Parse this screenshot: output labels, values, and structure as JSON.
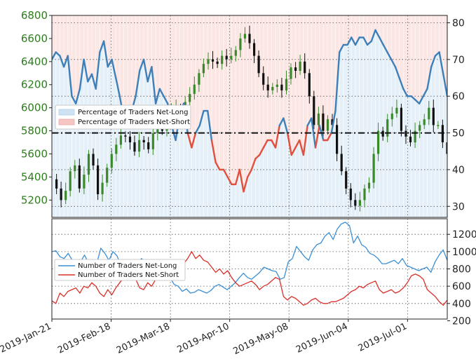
{
  "chart_data": [
    {
      "type": "candlestick+line+area",
      "x_labels": [
        "2019-Jan-21",
        "2019-Feb-18",
        "2019-Mar-18",
        "2019-Apr-10",
        "2019-May-08",
        "2019-Jun-04",
        "2019-Jul-01"
      ],
      "left_axis": {
        "ticks": [
          "5200",
          "5400",
          "5600",
          "5800",
          "6000",
          "6200",
          "6400",
          "6600",
          "6800"
        ],
        "ylim": [
          5050,
          6800
        ],
        "color": "#2e7d1e"
      },
      "right_axis": {
        "ticks": [
          "30",
          "40",
          "50",
          "60",
          "70",
          "80"
        ],
        "ylim": [
          27,
          82
        ]
      },
      "reference_line": 50,
      "legend": {
        "placement": "upper-left",
        "entries": [
          "Percentage of Traders Net-Long",
          "Percentage of Traders Net-Short"
        ]
      },
      "price_path": [
        5380,
        5300,
        5200,
        5280,
        5450,
        5500,
        5300,
        5420,
        5600,
        5500,
        5250,
        5350,
        5480,
        5600,
        5680,
        5760,
        5750,
        5700,
        5620,
        5720,
        5700,
        5640,
        5780,
        5860,
        5800,
        5920,
        5980,
        6000,
        5900,
        6050,
        6120,
        6200,
        6300,
        6380,
        6420,
        6400,
        6380,
        6450,
        6420,
        6450,
        6500,
        6600,
        6640,
        6560,
        6450,
        6300,
        6200,
        6150,
        6180,
        6200,
        6150,
        6250,
        6350,
        6320,
        6400,
        6300,
        6100,
        5850,
        5950,
        5800,
        5900,
        5850,
        5600,
        5450,
        5300,
        5200,
        5150,
        5200,
        5300,
        5350,
        5600,
        5800,
        5750,
        5900,
        5950,
        6000,
        5800,
        5750,
        5700,
        5800,
        5850,
        5900,
        6000,
        5850,
        5850,
        5700,
        5600
      ],
      "percent_net_long": [
        70,
        72,
        71,
        68,
        71,
        60,
        58,
        62,
        70,
        64,
        66,
        62,
        72,
        75,
        68,
        70,
        65,
        60,
        54,
        52,
        56,
        60,
        67,
        70,
        64,
        68,
        58,
        62,
        60,
        58,
        52,
        48,
        55,
        58,
        50,
        46,
        50,
        52,
        56,
        56,
        48,
        42,
        40,
        40,
        38,
        36,
        36,
        40,
        34,
        38,
        40,
        43,
        44,
        46,
        48,
        48,
        46,
        52,
        54,
        50,
        44,
        46,
        48,
        44,
        52,
        54,
        46,
        52,
        48,
        48,
        50,
        56,
        72,
        74,
        74,
        76,
        74,
        76,
        76,
        74,
        75,
        78,
        76,
        74,
        72,
        70,
        68,
        65,
        62,
        60,
        60,
        59,
        58,
        60,
        62,
        68,
        71,
        72,
        66,
        60
      ],
      "percent_net_short": [
        30,
        28,
        29,
        32,
        29,
        40,
        42,
        38,
        30,
        36,
        34,
        38,
        28,
        25,
        32,
        30,
        35,
        40,
        46,
        48,
        44,
        40,
        33,
        30,
        36,
        32,
        42,
        38,
        40,
        42,
        48,
        52,
        45,
        42,
        50,
        54,
        50,
        48,
        44,
        44,
        52,
        58,
        60,
        60,
        62,
        64,
        64,
        60,
        66,
        62,
        60,
        57,
        56,
        54,
        52,
        52,
        54,
        48,
        46,
        50,
        56,
        54,
        52,
        56,
        48,
        46,
        54,
        48,
        52,
        52,
        50,
        44,
        28,
        26,
        26,
        24,
        26,
        24,
        24,
        26,
        25,
        22,
        24,
        26,
        28,
        30,
        32,
        35,
        38,
        40,
        40,
        41,
        42,
        40,
        38,
        32,
        29,
        28,
        34,
        40
      ]
    },
    {
      "type": "line",
      "right_axis": {
        "ticks": [
          "200",
          "400",
          "600",
          "800",
          "1000",
          "1200"
        ],
        "ylim": [
          220,
          1380
        ]
      },
      "legend": {
        "placement": "upper-left"
      },
      "series": [
        {
          "name": "Number of Traders Net-Long",
          "color": "#3b8fd4",
          "values": [
            1000,
            1010,
            940,
            920,
            980,
            900,
            820,
            880,
            960,
            870,
            890,
            860,
            1040,
            980,
            900,
            1000,
            950,
            830,
            760,
            720,
            780,
            860,
            920,
            870,
            840,
            880,
            780,
            780,
            760,
            700,
            620,
            600,
            540,
            570,
            520,
            530,
            560,
            540,
            520,
            550,
            600,
            620,
            590,
            560,
            600,
            640,
            700,
            750,
            700,
            680,
            720,
            760,
            820,
            800,
            780,
            770,
            680,
            700,
            880,
            920,
            1060,
            1000,
            940,
            900,
            1020,
            1080,
            1100,
            1180,
            1220,
            1140,
            1260,
            1320,
            1340,
            1300,
            1100,
            1180,
            1080,
            1050,
            980,
            960,
            920,
            860,
            860,
            880,
            900,
            860,
            920,
            840,
            820,
            800,
            780,
            800,
            820,
            760,
            880,
            960,
            1020,
            900
          ]
        },
        {
          "name": "Number of Traders Net-Short",
          "color": "#d9302a",
          "values": [
            430,
            400,
            520,
            480,
            540,
            560,
            580,
            520,
            600,
            580,
            640,
            600,
            520,
            480,
            560,
            500,
            580,
            640,
            700,
            760,
            720,
            680,
            580,
            560,
            640,
            600,
            680,
            700,
            740,
            780,
            820,
            880,
            900,
            860,
            920,
            1000,
            920,
            960,
            900,
            880,
            820,
            760,
            800,
            740,
            780,
            700,
            640,
            600,
            620,
            640,
            660,
            620,
            560,
            600,
            620,
            660,
            700,
            680,
            480,
            440,
            480,
            460,
            420,
            380,
            400,
            440,
            460,
            420,
            400,
            400,
            420,
            420,
            440,
            460,
            500,
            540,
            560,
            600,
            580,
            620,
            640,
            660,
            560,
            520,
            540,
            560,
            520,
            540,
            580,
            640,
            720,
            740,
            720,
            680,
            560,
            520,
            480,
            420,
            380,
            440
          ]
        }
      ]
    }
  ]
}
